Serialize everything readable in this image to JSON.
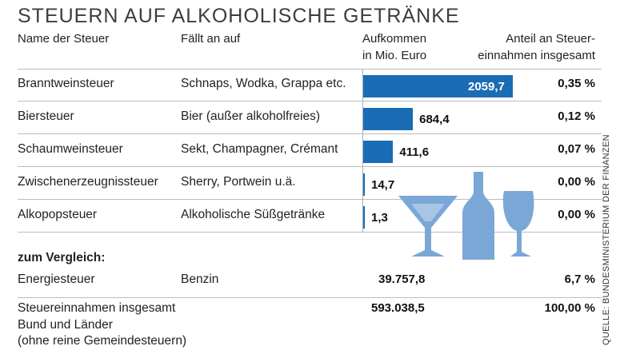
{
  "chart_data": {
    "type": "table",
    "title": "STEUERN AUF ALKOHOLISCHE GETRÄNKE",
    "columns": {
      "name": "Name der Steuer",
      "applies": "Fällt an auf",
      "revenue_1": "Aufkommen",
      "revenue_2": "in Mio. Euro",
      "share_1": "Anteil an Steuer-",
      "share_2": "einnahmen insgesamt"
    },
    "rows": [
      {
        "name": "Branntweinsteuer",
        "applies": "Schnaps, Wodka, Grappa etc.",
        "revenue": 2059.7,
        "revenue_label": "2059,7",
        "share": "0,35 %"
      },
      {
        "name": "Biersteuer",
        "applies": "Bier (außer alkoholfreies)",
        "revenue": 684.4,
        "revenue_label": "684,4",
        "share": "0,12 %"
      },
      {
        "name": "Schaumweinsteuer",
        "applies": "Sekt, Champagner, Crémant",
        "revenue": 411.6,
        "revenue_label": "411,6",
        "share": "0,07 %"
      },
      {
        "name": "Zwischenerzeugnissteuer",
        "applies": "Sherry, Portwein u.ä.",
        "revenue": 14.7,
        "revenue_label": "14,7",
        "share": "0,00 %"
      },
      {
        "name": "Alkopopsteuer",
        "applies": "Alkoholische Süßgetränke",
        "revenue": 1.3,
        "revenue_label": "1,3",
        "share": "0,00 %"
      }
    ],
    "comparison_heading": "zum Vergleich:",
    "comparison": [
      {
        "name": "Energiesteuer",
        "applies": "Benzin",
        "revenue_label": "39.757,8",
        "share": "6,7 %"
      }
    ],
    "total": {
      "name_1": "Steuereinnahmen insgesamt",
      "name_2": "Bund und Länder",
      "name_3": "(ohne reine Gemeindesteuern)",
      "revenue_label": "593.038,5",
      "share": "100,00 %"
    },
    "bar_max": 2059.7,
    "colors": {
      "bar": "#1a6db4",
      "illustration": "#7aa7d6"
    }
  },
  "source": "QUELLE: BUNDESMINISTERIUM DER FINANZEN"
}
